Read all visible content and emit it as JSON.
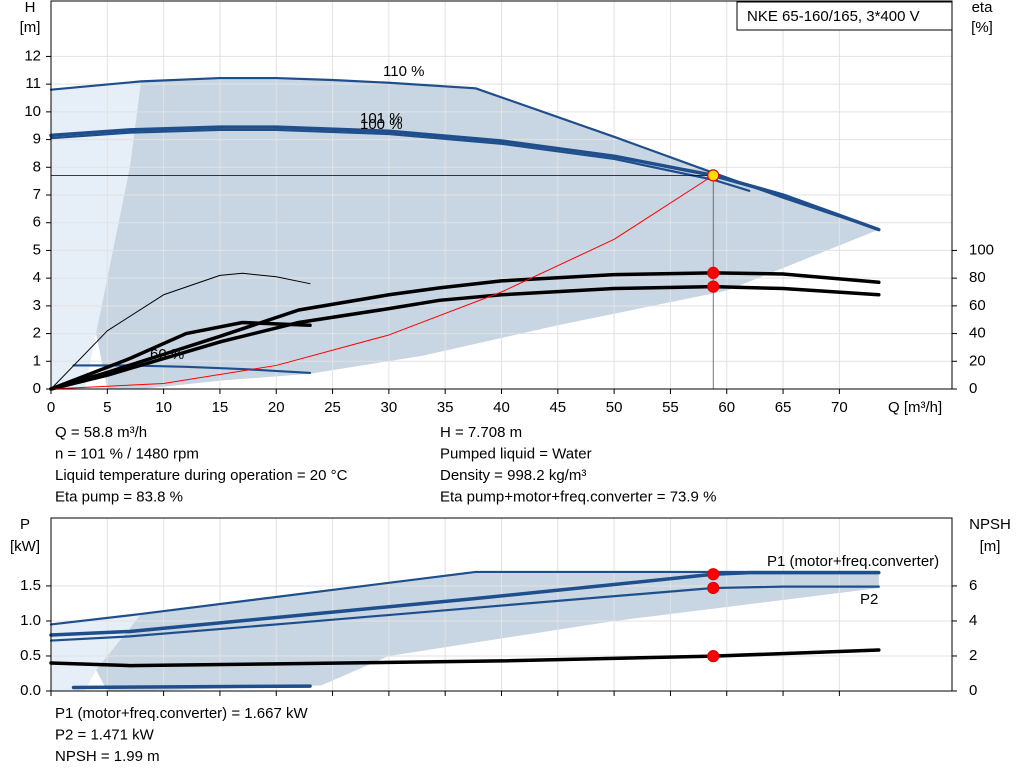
{
  "chart_data": [
    {
      "type": "line",
      "title": "NKE 65-160/165, 3*400 V",
      "xlabel": "Q [m³/h]",
      "ylabel": "H",
      "yunit": "[m]",
      "y2label": "eta",
      "y2unit": "[%]",
      "xlim": [
        0,
        80
      ],
      "ylim": [
        0,
        14
      ],
      "y2lim": [
        0,
        280
      ],
      "xticks": [
        0,
        5,
        10,
        15,
        20,
        25,
        30,
        35,
        40,
        45,
        50,
        55,
        60,
        65,
        70
      ],
      "yticks": [
        0,
        1,
        2,
        3,
        4,
        5,
        6,
        7,
        8,
        9,
        10,
        11,
        12
      ],
      "y2ticks": [
        0,
        20,
        40,
        60,
        80,
        100
      ],
      "grid": true,
      "areas": [
        {
          "color": "#e6eef8",
          "x": [
            0,
            8,
            7,
            4,
            3,
            0
          ],
          "values": [
            10.8,
            11.1,
            8,
            2,
            0,
            0
          ]
        },
        {
          "color": "#c8d5e2",
          "x": [
            8,
            15,
            20,
            25,
            30,
            37.7,
            50,
            58.8,
            65,
            73.5,
            60,
            45,
            33,
            23,
            15,
            8,
            5,
            4,
            7
          ],
          "values": [
            11.1,
            11.22,
            11.22,
            11.15,
            11.05,
            10.85,
            9.1,
            7.8,
            6.9,
            5.75,
            3.55,
            2.3,
            1.2,
            0.55,
            0.3,
            0,
            0,
            2,
            8
          ]
        }
      ],
      "series": [
        {
          "label": "110 %",
          "color": "#1f4e8c",
          "style": "medium",
          "x": [
            0,
            8,
            15,
            20,
            25,
            30,
            37.7,
            50,
            58.8,
            65,
            73.5
          ],
          "values": [
            10.8,
            11.1,
            11.22,
            11.22,
            11.15,
            11.05,
            10.85,
            9.1,
            7.8,
            6.9,
            5.75
          ]
        },
        {
          "label": "101 %",
          "color": "#1f4e8c",
          "style": "thick",
          "x": [
            0,
            7,
            15,
            20,
            30,
            40,
            50,
            58.8,
            65,
            73.5
          ],
          "values": [
            9.15,
            9.35,
            9.45,
            9.45,
            9.3,
            8.95,
            8.4,
            7.708,
            7.0,
            5.75
          ]
        },
        {
          "label": "100 %",
          "color": "#1f4e8c",
          "style": "medium",
          "x": [
            0,
            7,
            15,
            20,
            30,
            40,
            50,
            58.8,
            62
          ],
          "values": [
            9.05,
            9.25,
            9.35,
            9.35,
            9.2,
            8.85,
            8.3,
            7.55,
            7.15
          ]
        },
        {
          "label": "60 %",
          "color": "#1f4e8c",
          "style": "medium",
          "x": [
            2,
            7,
            12,
            17,
            23
          ],
          "values": [
            0.85,
            0.85,
            0.8,
            0.72,
            0.58
          ]
        },
        {
          "color": "#000000",
          "style": "thick",
          "axis": "y2",
          "x": [
            0,
            5,
            10,
            15,
            22,
            30,
            34.5,
            40,
            50,
            58.8,
            65,
            73.5
          ],
          "values": [
            0,
            12,
            25,
            38,
            57,
            68,
            73,
            78,
            82.5,
            83.8,
            83,
            77
          ]
        },
        {
          "color": "#000000",
          "style": "thick",
          "axis": "y2",
          "x": [
            0,
            5,
            10,
            15,
            22,
            30,
            34.5,
            40,
            50,
            58.8,
            65,
            73.5
          ],
          "values": [
            0,
            10,
            22,
            34,
            48,
            58,
            64,
            68,
            72.5,
            73.9,
            72.5,
            68
          ]
        },
        {
          "color": "#000000",
          "style": "thin",
          "axis": "y2",
          "x": [
            0,
            5,
            10,
            15,
            17,
            20,
            23
          ],
          "values": [
            0,
            42,
            68,
            82,
            83.5,
            81,
            76
          ]
        },
        {
          "color": "#000000",
          "style": "thick",
          "axis": "y2",
          "x": [
            0,
            7,
            12,
            17,
            23
          ],
          "values": [
            0,
            22,
            40,
            48,
            46
          ]
        },
        {
          "color": "#ff0000",
          "style": "thin",
          "x": [
            0,
            10,
            20,
            30,
            40,
            50,
            58.8
          ],
          "values": [
            0,
            0.2,
            0.85,
            1.95,
            3.5,
            5.4,
            7.708
          ]
        }
      ],
      "points": [
        {
          "x": 58.8,
          "y": 7.708,
          "color": "#ffe000",
          "guides": true
        },
        {
          "x": 58.8,
          "y": 83.8,
          "axis": "y2",
          "color": "#ff0000"
        },
        {
          "x": 58.8,
          "y": 73.9,
          "axis": "y2",
          "color": "#ff0000"
        }
      ],
      "notes": [
        [
          "Q = 58.8 m³/h",
          "n = 101 % / 1480 rpm",
          "Liquid temperature during operation = 20 °C",
          "Eta pump = 83.8 %"
        ],
        [
          "H = 7.708 m",
          "Pumped liquid = Water",
          "Density = 998.2 kg/m³",
          "Eta pump+motor+freq.converter = 73.9 %"
        ]
      ]
    },
    {
      "type": "line",
      "ylabel": "P",
      "yunit": "[kW]",
      "y2label": "NPSH",
      "y2unit": "[m]",
      "xlim": [
        0,
        80
      ],
      "ylim": [
        0,
        2.47
      ],
      "y2lim": [
        0,
        9.88
      ],
      "xticks": [
        0,
        5,
        10,
        15,
        20,
        25,
        30,
        35,
        40,
        45,
        50,
        55,
        60,
        65,
        70
      ],
      "yticks": [
        {
          "value": 0,
          "label": "0.0"
        },
        0.5,
        {
          "value": 1,
          "label": "1.0"
        },
        1.5
      ],
      "y2ticks": [
        0,
        2,
        4,
        6
      ],
      "grid": true,
      "areas": [
        {
          "color": "#e6eef8",
          "x": [
            0,
            8,
            7,
            4,
            3,
            0
          ],
          "values": [
            0.95,
            1.1,
            0.9,
            0.3,
            0,
            0
          ]
        },
        {
          "color": "#c8d5e2",
          "x": [
            8,
            37.7,
            73.5,
            73.5,
            50,
            30,
            24,
            8,
            5,
            4,
            7
          ],
          "values": [
            1.1,
            1.7,
            1.7,
            1.47,
            1.0,
            0.5,
            0.08,
            0,
            0,
            0.3,
            0.9
          ]
        }
      ],
      "series": [
        {
          "color": "#1f4e8c",
          "style": "medium",
          "x": [
            0,
            8,
            37.7,
            73.5
          ],
          "values": [
            0.95,
            1.1,
            1.7,
            1.7
          ]
        },
        {
          "color": "#1f4e8c",
          "style": "thick",
          "x": [
            0,
            7,
            20,
            37.7,
            50,
            58.8,
            62,
            73.5
          ],
          "values": [
            0.8,
            0.85,
            1.05,
            1.32,
            1.52,
            1.667,
            1.69,
            1.69
          ]
        },
        {
          "color": "#1f4e8c",
          "style": "medium",
          "x": [
            0,
            7,
            20,
            40,
            58.8,
            65,
            73.5
          ],
          "values": [
            0.72,
            0.78,
            0.95,
            1.22,
            1.471,
            1.49,
            1.49
          ]
        },
        {
          "color": "#1f4e8c",
          "style": "thick",
          "x": [
            2,
            23
          ],
          "values": [
            0.05,
            0.07
          ]
        },
        {
          "color": "#000000",
          "style": "thick",
          "axis": "y2",
          "x": [
            0,
            7,
            20,
            40,
            58.8,
            73.5
          ],
          "values": [
            1.6,
            1.45,
            1.55,
            1.72,
            1.99,
            2.34
          ]
        }
      ],
      "points": [
        {
          "x": 58.8,
          "y": 1.667,
          "color": "#ff0000"
        },
        {
          "x": 58.8,
          "y": 1.471,
          "color": "#ff0000"
        },
        {
          "x": 58.8,
          "y": 1.99,
          "axis": "y2",
          "color": "#ff0000"
        }
      ],
      "annotations": [
        {
          "text": "P1 (motor+freq.converter)",
          "color": "#1f4e8c"
        },
        {
          "text": "P2",
          "color": "#1f4e8c"
        }
      ],
      "notes": [
        [
          "P1 (motor+freq.converter) = 1.667 kW",
          "P2 = 1.471 kW",
          "NPSH = 1.99 m"
        ]
      ]
    }
  ]
}
